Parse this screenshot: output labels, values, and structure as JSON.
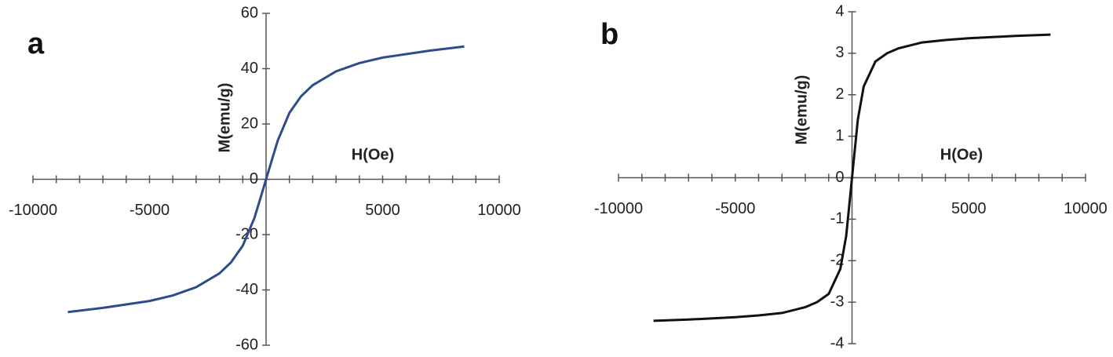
{
  "chart_data": [
    {
      "type": "line",
      "panel_label": "a",
      "xlabel": "H(Oe)",
      "ylabel": "M(emu/g)",
      "color": "#2e4b8c",
      "x": [
        -8500,
        -7000,
        -5000,
        -4000,
        -3000,
        -2000,
        -1500,
        -1000,
        -500,
        -250,
        0,
        250,
        500,
        1000,
        1500,
        2000,
        3000,
        4000,
        5000,
        7000,
        8500
      ],
      "values": [
        -48,
        -46.5,
        -44,
        -42,
        -39,
        -34,
        -30,
        -24,
        -14,
        -7,
        0,
        7,
        14,
        24,
        30,
        34,
        39,
        42,
        44,
        46.5,
        48
      ],
      "xlim": [
        -10000,
        10000
      ],
      "xticks": [
        -10000,
        -5000,
        5000,
        10000
      ],
      "xminorticks": [
        -10000,
        -9000,
        -8000,
        -7000,
        -6000,
        -5000,
        -4000,
        -3000,
        -2000,
        -1000,
        0,
        1000,
        2000,
        3000,
        4000,
        5000,
        6000,
        7000,
        8000,
        9000,
        10000
      ],
      "ylim": [
        -60,
        60
      ],
      "yticks": [
        -60,
        -40,
        -20,
        0,
        20,
        40,
        60
      ]
    },
    {
      "type": "line",
      "panel_label": "b",
      "xlabel": "H(Oe)",
      "ylabel": "M(emu/g)",
      "color": "#111111",
      "x": [
        -8500,
        -7000,
        -5000,
        -4000,
        -3000,
        -2000,
        -1500,
        -1000,
        -500,
        -250,
        0,
        250,
        500,
        1000,
        1500,
        2000,
        3000,
        4000,
        5000,
        7000,
        8500
      ],
      "values": [
        -3.45,
        -3.42,
        -3.36,
        -3.32,
        -3.26,
        -3.12,
        -3.0,
        -2.8,
        -2.2,
        -1.4,
        0,
        1.4,
        2.2,
        2.8,
        3.0,
        3.12,
        3.26,
        3.32,
        3.36,
        3.42,
        3.45
      ],
      "xlim": [
        -10000,
        10000
      ],
      "xticks": [
        -10000,
        -5000,
        5000,
        10000
      ],
      "xminorticks": [
        -10000,
        -9000,
        -8000,
        -7000,
        -6000,
        -5000,
        -4000,
        -3000,
        -2000,
        -1000,
        0,
        1000,
        2000,
        3000,
        4000,
        5000,
        6000,
        7000,
        8000,
        9000,
        10000
      ],
      "ylim": [
        -4,
        4
      ],
      "yticks": [
        -4,
        -3,
        -2,
        -1,
        0,
        1,
        2,
        3,
        4
      ]
    }
  ]
}
